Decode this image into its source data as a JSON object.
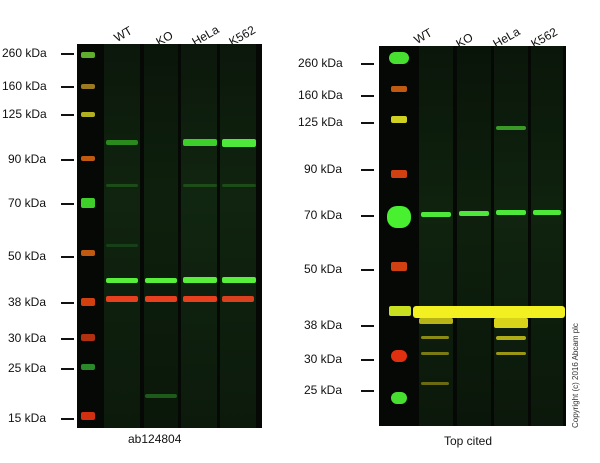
{
  "left_panel": {
    "lanes": [
      "WT",
      "KO",
      "HeLa",
      "K562"
    ],
    "markers": [
      "260 kDa",
      "160 kDa",
      "125 kDa",
      "90 kDa",
      "70 kDa",
      "50 kDa",
      "38 kDa",
      "30 kDa",
      "25 kDa",
      "15 kDa"
    ],
    "caption": "ab124804"
  },
  "right_panel": {
    "lanes": [
      "WT",
      "KO",
      "HeLa",
      "K562"
    ],
    "markers": [
      "260 kDa",
      "160 kDa",
      "125 kDa",
      "90 kDa",
      "70 kDa",
      "50 kDa",
      "38 kDa",
      "30 kDa",
      "25 kDa"
    ],
    "caption": "Top cited"
  },
  "copyright": "Copyright (c) 2016 Abcam plc"
}
